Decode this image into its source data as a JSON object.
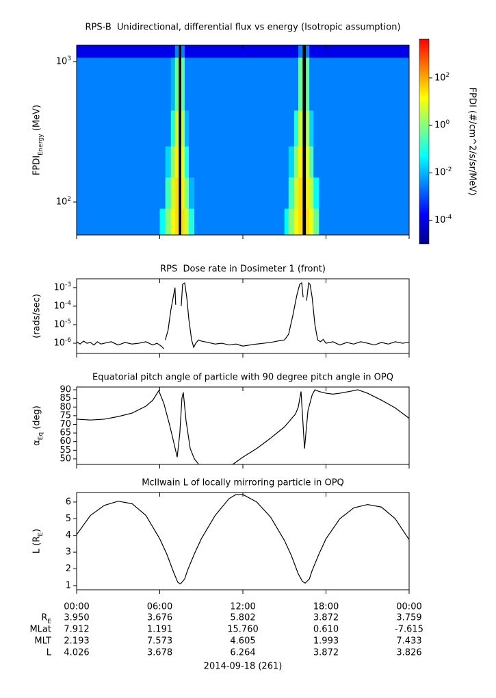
{
  "chart_data": [
    {
      "type": "heatmap",
      "title": "RPS-B  Unidirectional, differential flux vs energy (Isotropic assumption)",
      "ylabel": "FPDI_{Energy} (MeV)",
      "zlabel": "FPDI (#/cm^2/s/sr/MeV)",
      "x_edges": [
        0,
        2,
        4,
        5.5,
        6.0,
        6.4,
        6.8,
        7.1,
        7.35,
        7.55,
        7.8,
        8.1,
        8.5,
        9,
        11,
        13,
        14,
        15,
        15.3,
        15.7,
        16.0,
        16.3,
        16.55,
        16.8,
        17.1,
        17.5,
        18,
        20,
        22,
        24
      ],
      "y_edges": [
        58.3,
        90,
        150,
        250,
        450,
        1070,
        1309
      ],
      "z": [
        [
          0.003,
          0.003,
          0.003,
          0.003,
          0.05,
          1,
          10,
          30,
          null,
          30,
          5,
          0.1,
          0.003,
          0.003,
          0.003,
          0.003,
          0.003,
          0.05,
          1,
          10,
          30,
          null,
          30,
          10,
          0.5,
          0.003,
          0.003,
          0.003,
          0.003
        ],
        [
          0.003,
          0.003,
          0.003,
          0.003,
          0.003,
          0.2,
          5,
          30,
          null,
          20,
          1,
          0.01,
          0.003,
          0.003,
          0.003,
          0.003,
          0.003,
          0.003,
          0.2,
          5,
          30,
          null,
          20,
          3,
          0.05,
          0.003,
          0.003,
          0.003,
          0.003
        ],
        [
          0.003,
          0.003,
          0.003,
          0.003,
          0.003,
          0.02,
          1,
          20,
          null,
          10,
          0.1,
          0.003,
          0.003,
          0.003,
          0.003,
          0.003,
          0.003,
          0.003,
          0.02,
          1,
          20,
          null,
          10,
          0.3,
          0.003,
          0.003,
          0.003,
          0.003,
          0.003
        ],
        [
          0.003,
          0.003,
          0.003,
          0.003,
          0.003,
          0.003,
          0.1,
          5,
          null,
          3,
          0.01,
          0.003,
          0.003,
          0.003,
          0.003,
          0.003,
          0.003,
          0.003,
          0.003,
          0.1,
          5,
          null,
          3,
          0.02,
          0.003,
          0.003,
          0.003,
          0.003,
          0.003
        ],
        [
          0.003,
          0.003,
          0.003,
          0.003,
          0.003,
          0.003,
          0.01,
          0.5,
          null,
          0.5,
          0.003,
          0.003,
          0.003,
          0.003,
          0.003,
          0.003,
          0.003,
          0.003,
          0.003,
          0.003,
          0.5,
          null,
          0.5,
          0.003,
          0.003,
          0.003,
          0.003,
          0.003,
          0.003
        ],
        [
          0.0001,
          0.0001,
          0.0001,
          0.0001,
          0.0001,
          0.0001,
          0.0001,
          0.003,
          null,
          0.003,
          0.0001,
          0.0001,
          0.0001,
          0.0001,
          0.0001,
          0.0001,
          0.0001,
          0.0001,
          0.0001,
          0.0001,
          0.003,
          null,
          0.003,
          0.0001,
          0.0001,
          0.0001,
          0.0001,
          0.0001,
          0.0001
        ]
      ],
      "xlim": [
        0,
        24
      ],
      "xticks": [
        0,
        6,
        12,
        18,
        24
      ],
      "ylim": [
        58.3,
        1309
      ],
      "ylog": true,
      "yticks": [
        {
          "value": 100,
          "label": "10^{2}"
        },
        {
          "value": 1000,
          "label": "10^{3}"
        }
      ],
      "zlim": [
        1e-05,
        4400
      ],
      "zlog": true,
      "zticks": [
        {
          "value": 0.0001,
          "label": "10^{-4}"
        },
        {
          "value": 0.01,
          "label": "10^{-2}"
        },
        {
          "value": 1,
          "label": "10^{0}"
        },
        {
          "value": 100,
          "label": "10^{2}"
        }
      ],
      "colormap": [
        "#00008f",
        "#0000ff",
        "#0080ff",
        "#00ffff",
        "#80ff80",
        "#ffff00",
        "#ff8000",
        "#ff0000"
      ]
    },
    {
      "type": "line",
      "title": "RPS  Dose rate in Dosimeter 1 (front)",
      "ylabel": "(rads/sec)",
      "color": "#000000",
      "x": [
        0,
        0.25,
        0.5,
        0.75,
        1,
        1.25,
        1.5,
        1.75,
        2,
        2.5,
        3,
        3.5,
        4,
        4.5,
        5,
        5.5,
        5.8,
        6.1,
        6.3,
        6.35,
        6.4,
        6.6,
        6.8,
        7.0,
        7.1,
        7.15,
        7.2,
        7.55,
        7.65,
        7.8,
        7.95,
        8.1,
        8.3,
        8.45,
        8.6,
        8.8,
        9,
        9.5,
        10,
        10.5,
        11,
        11.5,
        12,
        12.5,
        13,
        13.5,
        14,
        14.5,
        15,
        15.3,
        15.6,
        15.9,
        16.1,
        16.25,
        16.35,
        16.4,
        16.6,
        16.75,
        16.85,
        17.0,
        17.2,
        17.4,
        17.6,
        17.8,
        18,
        18.5,
        19,
        19.5,
        20,
        20.5,
        21,
        21.5,
        22,
        22.5,
        23,
        23.5,
        24
      ],
      "values": [
        1.2e-06,
        9e-07,
        1.3e-06,
        1e-06,
        1.1e-06,
        8e-07,
        1.2e-06,
        9e-07,
        1e-06,
        1.2e-06,
        8e-07,
        1.1e-06,
        9e-07,
        1e-06,
        1.2e-06,
        8e-07,
        1e-06,
        7e-07,
        5e-07,
        null,
        1.5e-06,
        5e-06,
        6e-05,
        0.0004,
        0.001,
        0.00012,
        null,
        0.0001,
        0.0015,
        0.0018,
        0.0003,
        2e-05,
        1.5e-06,
        6e-07,
        1e-06,
        1.5e-06,
        1.3e-06,
        1.1e-06,
        9e-07,
        1e-06,
        8e-07,
        9e-07,
        7e-07,
        8e-07,
        9e-07,
        1e-06,
        1.1e-06,
        1.3e-06,
        1.5e-06,
        3e-06,
        3e-05,
        0.0004,
        0.0015,
        0.0018,
        0.0003,
        null,
        0.0002,
        0.0018,
        0.0015,
        0.0003,
        1e-05,
        1.5e-06,
        1.2e-06,
        1.6e-06,
        1e-06,
        1.2e-06,
        8e-07,
        1.1e-06,
        9e-07,
        1.2e-06,
        1e-06,
        8e-07,
        1.1e-06,
        9e-07,
        1.2e-06,
        1e-06,
        1.1e-06
      ],
      "xlim": [
        0,
        24
      ],
      "xticks": [
        0,
        6,
        12,
        18,
        24
      ],
      "ylim": [
        2.8e-07,
        0.003
      ],
      "ylog": true,
      "yticks": [
        {
          "value": 1e-06,
          "label": "10^{-6}"
        },
        {
          "value": 1e-05,
          "label": "10^{-5}"
        },
        {
          "value": 0.0001,
          "label": "10^{-4}"
        },
        {
          "value": 0.001,
          "label": "10^{-3}"
        }
      ]
    },
    {
      "type": "line",
      "title": "Equatorial pitch angle of particle with 90 degree pitch angle in OPQ",
      "ylabel": "α_{Eq} (deg)",
      "color": "#000000",
      "x": [
        0,
        1,
        2,
        3,
        4,
        5,
        5.5,
        5.93,
        6.3,
        6.7,
        7.0,
        7.26,
        7.45,
        7.6,
        7.7,
        7.9,
        8.2,
        8.5,
        8.8,
        9.0,
        11.3,
        12,
        13,
        14,
        15,
        15.8,
        16.0,
        16.2,
        16.45,
        16.7,
        17.0,
        17.2,
        17.5,
        18,
        18.5,
        19,
        20,
        20.3,
        21,
        22,
        23,
        24
      ],
      "values": [
        73,
        72.5,
        73,
        74.5,
        76.5,
        80.5,
        84,
        89.5,
        82,
        70,
        60,
        51,
        65,
        85,
        88.5,
        72,
        56,
        50,
        47,
        null,
        47,
        51,
        56,
        62,
        68.5,
        76,
        80,
        89,
        56,
        78,
        87,
        90,
        89,
        88,
        87.5,
        88,
        89.5,
        90,
        88,
        84,
        79.5,
        73.5
      ],
      "xlim": [
        0,
        24
      ],
      "xticks": [
        0,
        6,
        12,
        18,
        24
      ],
      "ylim": [
        46.8,
        91.6
      ],
      "yticks": [
        50,
        55,
        60,
        65,
        70,
        75,
        80,
        85,
        90
      ]
    },
    {
      "type": "line",
      "title": "McIlwain L of locally mirroring particle in OPQ",
      "ylabel": "L (R_{E})",
      "xlabel": "2014-09-18 (261)",
      "color": "#000000",
      "x": [
        0,
        1,
        2,
        3,
        4,
        5,
        6,
        6.5,
        7,
        7.3,
        7.5,
        7.8,
        8,
        8.5,
        9,
        10,
        11,
        11.5,
        12,
        13,
        14,
        15,
        15.5,
        16,
        16.3,
        16.5,
        16.8,
        17,
        17.5,
        18,
        19,
        20,
        21,
        22,
        23,
        24
      ],
      "values": [
        4.05,
        5.2,
        5.8,
        6.05,
        5.9,
        5.2,
        3.8,
        2.9,
        1.8,
        1.2,
        1.1,
        1.4,
        1.9,
        2.9,
        3.8,
        5.2,
        6.2,
        6.45,
        6.45,
        6.0,
        5.1,
        3.7,
        2.8,
        1.7,
        1.25,
        1.15,
        1.4,
        1.9,
        2.9,
        3.8,
        5.0,
        5.65,
        5.85,
        5.7,
        5.0,
        3.75
      ],
      "xlim": [
        0,
        24
      ],
      "xticks": [
        {
          "value": 0,
          "label": "00:00"
        },
        {
          "value": 6,
          "label": "06:00"
        },
        {
          "value": 12,
          "label": "12:00"
        },
        {
          "value": 18,
          "label": "18:00"
        },
        {
          "value": 24,
          "label": "00:00"
        }
      ],
      "ylim": [
        0.75,
        6.57
      ],
      "yticks": [
        1,
        2,
        3,
        4,
        5,
        6
      ]
    }
  ],
  "ephemeris": {
    "rows": [
      {
        "label": "R_{E}",
        "values": [
          "3.950",
          "3.676",
          "5.802",
          "3.872",
          "3.759"
        ]
      },
      {
        "label": "MLat",
        "values": [
          "7.912",
          "1.191",
          "15.760",
          "0.610",
          "-7.615"
        ]
      },
      {
        "label": "MLT",
        "values": [
          "2.193",
          "7.573",
          "4.605",
          "1.993",
          "7.433"
        ]
      },
      {
        "label": "L",
        "values": [
          "4.026",
          "3.678",
          "6.264",
          "3.872",
          "3.826"
        ]
      }
    ]
  }
}
